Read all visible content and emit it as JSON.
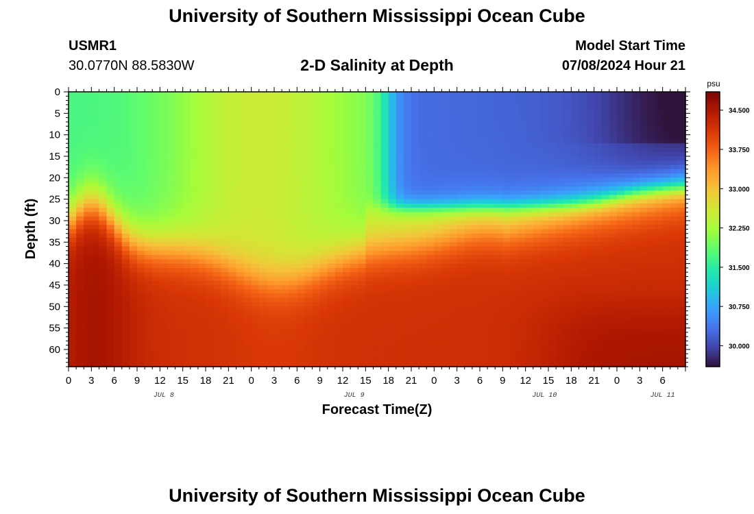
{
  "header": {
    "title": "University of Southern Mississippi Ocean Cube",
    "station_id": "USMR1",
    "coords": "30.0770N  88.5830W",
    "subtitle": "2-D Salinity at Depth",
    "model_start_label": "Model Start Time",
    "model_start_value": "07/08/2024 Hour 21"
  },
  "footer": {
    "title": "University of Southern Mississippi Ocean Cube"
  },
  "colors": {
    "background": "#ffffff",
    "text": "#000000",
    "colormap": [
      "#30123b",
      "#4145ab",
      "#4675ed",
      "#39a2fc",
      "#1bcfd4",
      "#24eca6",
      "#61fc6c",
      "#a4fc3b",
      "#d1e834",
      "#f3c63a",
      "#fe9b2d",
      "#f36315",
      "#d93806",
      "#b11901",
      "#7a0403"
    ]
  },
  "chart_data": {
    "type": "heatmap",
    "title": "2-D Salinity at Depth",
    "xlabel": "Forecast Time(Z)",
    "ylabel": "Depth (ft)",
    "x_range_hours": [
      0,
      81
    ],
    "y_range_ft": [
      0,
      64
    ],
    "x_tick_labels": [
      "0",
      "3",
      "6",
      "9",
      "12",
      "15",
      "18",
      "21",
      "0",
      "3",
      "6",
      "9",
      "12",
      "15",
      "18",
      "21",
      "0",
      "3",
      "6",
      "9",
      "12",
      "15",
      "18",
      "21",
      "0",
      "3",
      "6"
    ],
    "x_tick_hours": [
      0,
      3,
      6,
      9,
      12,
      15,
      18,
      21,
      24,
      27,
      30,
      33,
      36,
      39,
      42,
      45,
      48,
      51,
      54,
      57,
      60,
      63,
      66,
      69,
      72,
      75,
      78
    ],
    "date_labels": [
      {
        "label": "JUL 8",
        "hour": 12.5
      },
      {
        "label": "JUL 9",
        "hour": 37.5
      },
      {
        "label": "JUL 10",
        "hour": 62.5
      },
      {
        "label": "JUL 11",
        "hour": 78
      }
    ],
    "y_ticks": [
      0,
      5,
      10,
      15,
      20,
      25,
      30,
      35,
      40,
      45,
      50,
      55,
      60
    ],
    "colorbar": {
      "unit": "psu",
      "range": [
        29.6,
        34.85
      ],
      "tick_values": [
        30.0,
        30.75,
        31.5,
        32.25,
        33.0,
        33.75,
        34.5
      ],
      "tick_labels": [
        "30.000",
        "30.750",
        "31.500",
        "32.250",
        "33.000",
        "33.750",
        "34.500"
      ]
    },
    "approx_layer_salinity_psu": [
      {
        "hours": "0-40",
        "depth_ft": "0-25",
        "value": 31.9
      },
      {
        "hours": "0-40",
        "depth_ft": "30-45",
        "value": 32.8
      },
      {
        "hours": "42-81",
        "depth_ft": "0-25",
        "value": 30.2
      },
      {
        "hours": "0-81",
        "depth_ft": "40-64",
        "value": 34.3
      }
    ]
  }
}
